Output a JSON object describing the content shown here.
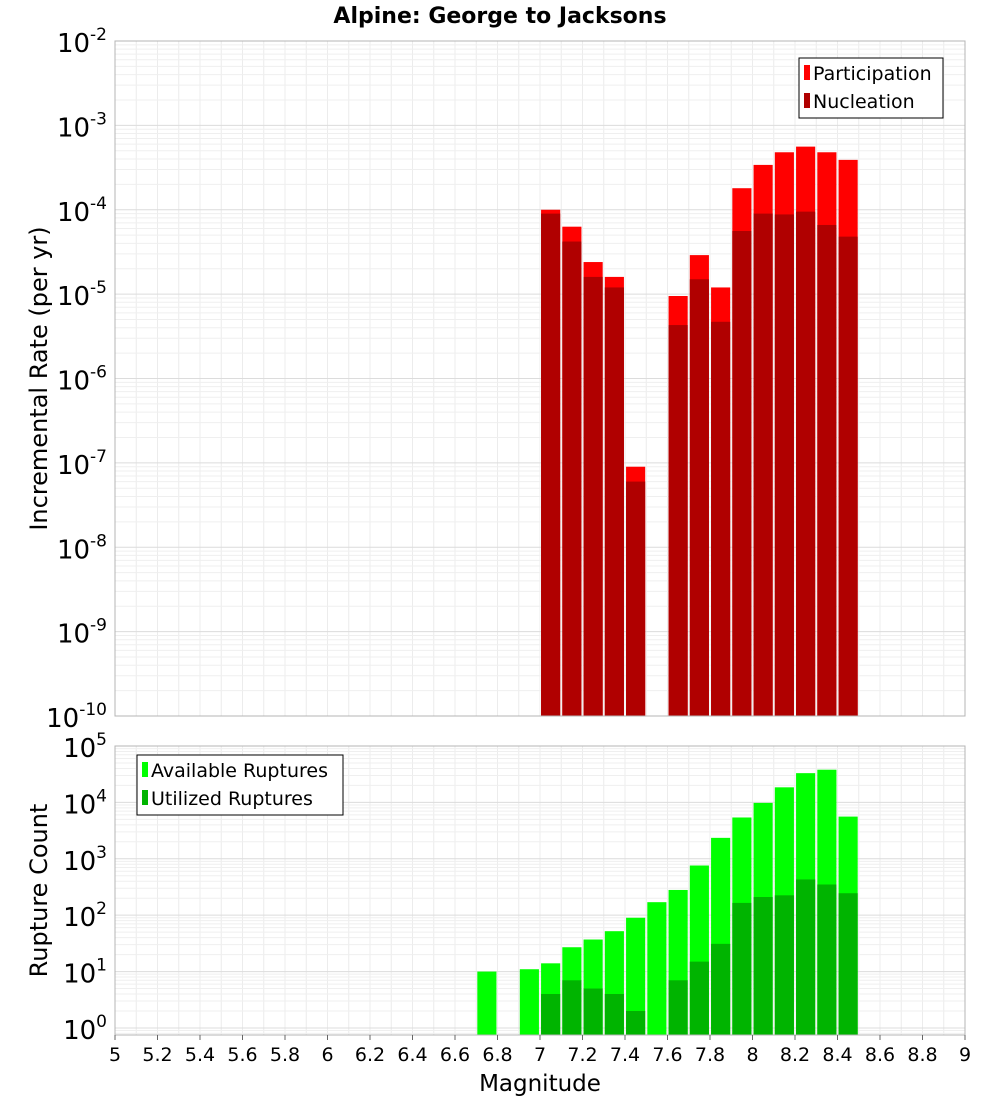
{
  "chart_data": [
    {
      "type": "bar",
      "title": "Alpine: George to Jacksons",
      "xlabel": "",
      "ylabel": "Incremental Rate (per yr)",
      "yscale": "log",
      "xlim": [
        5,
        9
      ],
      "ylim": [
        1e-10,
        0.01
      ],
      "y_tick_exponents": [
        "-10",
        "-9",
        "-8",
        "-7",
        "-6",
        "-5",
        "-4",
        "-3",
        "-2"
      ],
      "y_tick_base": "10",
      "grid": true,
      "legend_position": "top-right",
      "bar_width": 0.09,
      "colors": {
        "Participation": "#ff0000",
        "Nucleation": "#b00000"
      },
      "series": [
        {
          "name": "Participation",
          "x": [
            7.05,
            7.15,
            7.25,
            7.35,
            7.45,
            7.65,
            7.75,
            7.85,
            7.95,
            8.05,
            8.15,
            8.25,
            8.35,
            8.45
          ],
          "values": [
            0.0001,
            6.3e-05,
            2.4e-05,
            1.6e-05,
            9e-08,
            9.5e-06,
            2.9e-05,
            1.2e-05,
            0.00018,
            0.00034,
            0.00048,
            0.00056,
            0.00048,
            0.00039
          ]
        },
        {
          "name": "Nucleation",
          "x": [
            7.05,
            7.15,
            7.25,
            7.35,
            7.45,
            7.65,
            7.75,
            7.85,
            7.95,
            8.05,
            8.15,
            8.25,
            8.35,
            8.45
          ],
          "values": [
            9e-05,
            4.2e-05,
            1.6e-05,
            1.2e-05,
            6e-08,
            4.3e-06,
            1.5e-05,
            4.7e-06,
            5.6e-05,
            9e-05,
            8.8e-05,
            9.5e-05,
            6.6e-05,
            4.8e-05
          ]
        }
      ]
    },
    {
      "type": "bar",
      "title": "",
      "xlabel": "Magnitude",
      "ylabel": "Rupture Count",
      "yscale": "log",
      "xlim": [
        5,
        9
      ],
      "ylim": [
        0.75,
        100000.0
      ],
      "y_tick_exponents": [
        "0",
        "1",
        "2",
        "3",
        "4",
        "5"
      ],
      "y_tick_base": "10",
      "x_ticks": [
        "5",
        "5.2",
        "5.4",
        "5.6",
        "5.8",
        "6",
        "6.2",
        "6.4",
        "6.6",
        "6.8",
        "7",
        "7.2",
        "7.4",
        "7.6",
        "7.8",
        "8",
        "8.2",
        "8.4",
        "8.6",
        "8.8",
        "9"
      ],
      "grid": true,
      "legend_position": "top-left",
      "bar_width": 0.09,
      "colors": {
        "Available Ruptures": "#00ff00",
        "Utilized Ruptures": "#00b400"
      },
      "series": [
        {
          "name": "Available Ruptures",
          "x": [
            6.75,
            6.95,
            7.05,
            7.15,
            7.25,
            7.35,
            7.45,
            7.55,
            7.65,
            7.75,
            7.85,
            7.95,
            8.05,
            8.15,
            8.25,
            8.35,
            8.45
          ],
          "values": [
            10,
            11,
            14,
            27,
            37,
            52,
            90,
            170,
            280,
            760,
            2350,
            5400,
            9800,
            18500,
            33000,
            38000,
            5600
          ]
        },
        {
          "name": "Utilized Ruptures",
          "x": [
            7.05,
            7.15,
            7.25,
            7.35,
            7.45,
            7.65,
            7.75,
            7.85,
            7.95,
            8.05,
            8.15,
            8.25,
            8.35,
            8.45
          ],
          "values": [
            4,
            7,
            5,
            4,
            2,
            7,
            15,
            31,
            165,
            210,
            225,
            430,
            350,
            245
          ]
        }
      ]
    }
  ]
}
